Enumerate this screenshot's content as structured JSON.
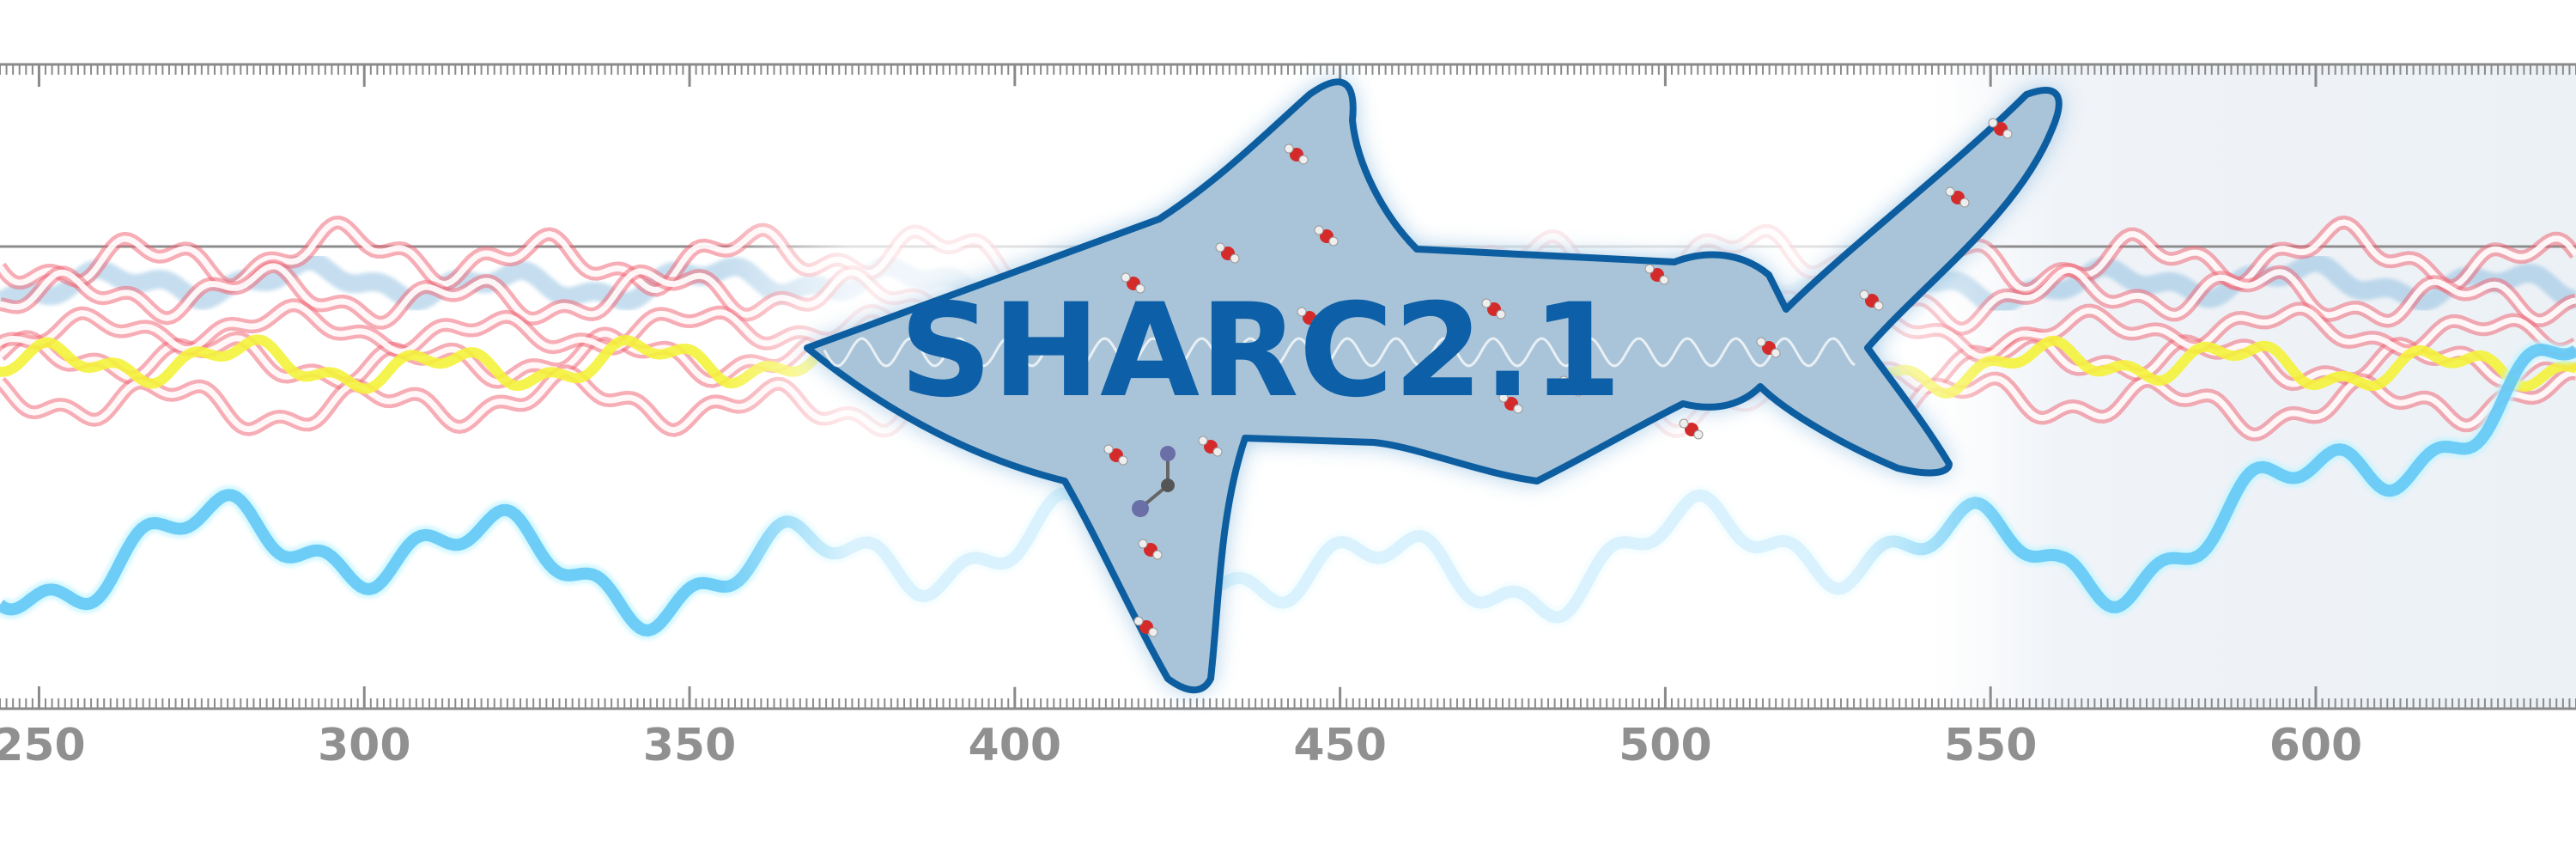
{
  "logo": {
    "text": "SHARC2.1",
    "fill_color": "#a9c4d8",
    "outline_color": "#0d5ea0",
    "text_color": "#0d5fa8"
  },
  "axis": {
    "tick_labels": [
      "250",
      "300",
      "350",
      "400",
      "450",
      "500",
      "550",
      "600"
    ],
    "tick_values": [
      250,
      300,
      350,
      400,
      450,
      500,
      550,
      600
    ],
    "range": [
      244,
      640
    ],
    "color": "#8a8a8a"
  },
  "traces": {
    "colors": {
      "red": "#f06a78",
      "yellow": "#f4f23a",
      "blue_band": "#7fb6dc",
      "lower": "#5cc6f5",
      "lower_light": "#bff4ff",
      "reference_line": "#8d8d8d"
    }
  }
}
